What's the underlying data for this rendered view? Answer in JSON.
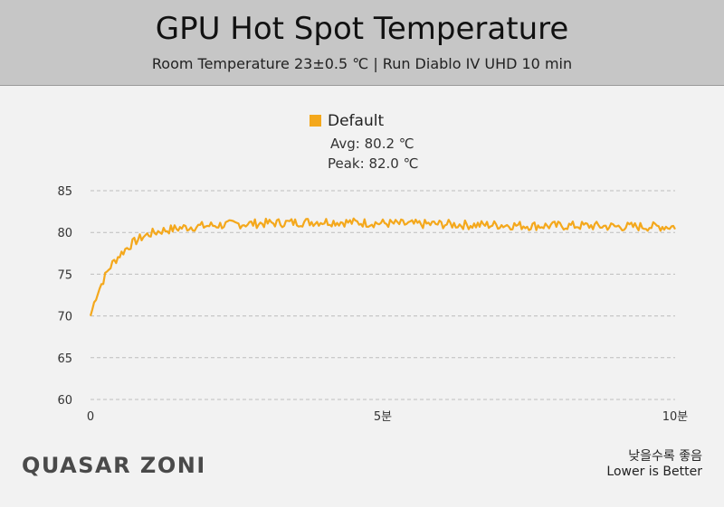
{
  "chart_data": {
    "type": "line",
    "title": "GPU Hot Spot Temperature",
    "subtitle": "Room Temperature 23±0.5 ℃  |  Run Diablo IV UHD 10 min",
    "series": [
      {
        "name": "Default",
        "color": "#f4a81c",
        "stats": {
          "avg": "Avg: 80.2 ℃",
          "peak": "Peak: 82.0 ℃"
        },
        "x": [
          0,
          0.1,
          0.2,
          0.3,
          0.4,
          0.5,
          0.6,
          0.7,
          0.8,
          0.9,
          1.0,
          1.2,
          1.4,
          1.6,
          1.8,
          2.0,
          2.5,
          3.0,
          3.5,
          4.0,
          4.5,
          5.0,
          5.5,
          6.0,
          6.5,
          7.0,
          7.5,
          8.0,
          8.5,
          9.0,
          9.5,
          10.0
        ],
        "y": [
          70.0,
          72.5,
          74.0,
          75.5,
          76.5,
          77.3,
          78.0,
          78.6,
          79.1,
          79.5,
          79.8,
          80.2,
          80.4,
          80.6,
          80.7,
          80.8,
          81.0,
          81.1,
          81.2,
          81.3,
          81.2,
          81.1,
          81.0,
          81.0,
          80.9,
          80.9,
          80.8,
          80.8,
          80.8,
          80.7,
          80.7,
          80.7
        ]
      }
    ],
    "xlim": [
      0,
      10
    ],
    "ylim": [
      60,
      85
    ],
    "yticks": [
      60,
      65,
      70,
      75,
      80,
      85
    ],
    "xticks": [
      {
        "value": 0,
        "label": "0"
      },
      {
        "value": 5,
        "label": "5분"
      },
      {
        "value": 10,
        "label": "10분"
      }
    ],
    "grid": true,
    "legend_position": "top-center"
  },
  "logo": {
    "text": "QUASAR ZONE"
  },
  "note": {
    "ko": "낮을수록 좋음",
    "en": "Lower is Better"
  }
}
